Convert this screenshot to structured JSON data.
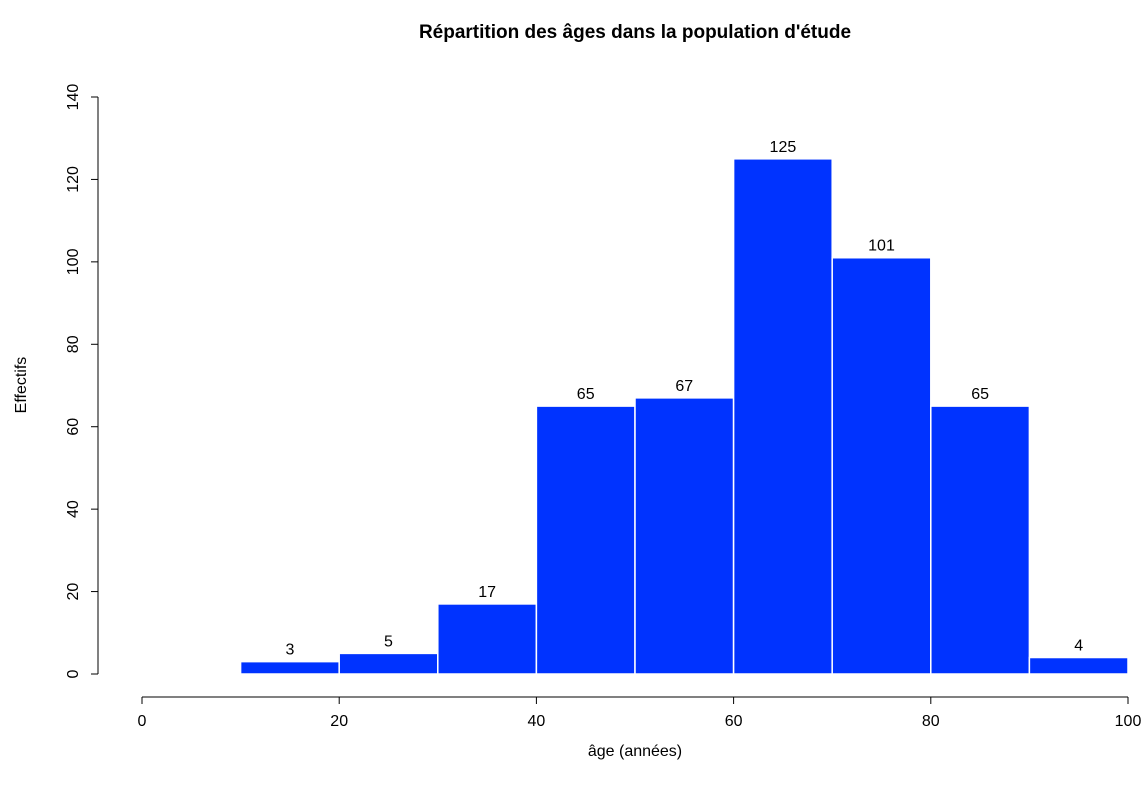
{
  "chart_data": {
    "type": "bar",
    "title": "Répartition des âges dans la population d'étude",
    "xlabel": "âge (années)",
    "ylabel": "Effectifs",
    "bins": [
      {
        "from": 10,
        "to": 20,
        "value": 3
      },
      {
        "from": 20,
        "to": 30,
        "value": 5
      },
      {
        "from": 30,
        "to": 40,
        "value": 17
      },
      {
        "from": 40,
        "to": 50,
        "value": 65
      },
      {
        "from": 50,
        "to": 60,
        "value": 67
      },
      {
        "from": 60,
        "to": 70,
        "value": 125
      },
      {
        "from": 70,
        "to": 80,
        "value": 101
      },
      {
        "from": 80,
        "to": 90,
        "value": 65
      },
      {
        "from": 90,
        "to": 100,
        "value": 4
      }
    ],
    "xlim": [
      0,
      100
    ],
    "ylim": [
      0,
      140
    ],
    "xticks": [
      "0",
      "20",
      "40",
      "60",
      "80",
      "100"
    ],
    "yticks": [
      "0",
      "20",
      "40",
      "60",
      "80",
      "100",
      "120",
      "140"
    ],
    "bar_color": "#0033ff",
    "bar_border_color": "#ffffff",
    "grid": false,
    "legend": "none"
  }
}
